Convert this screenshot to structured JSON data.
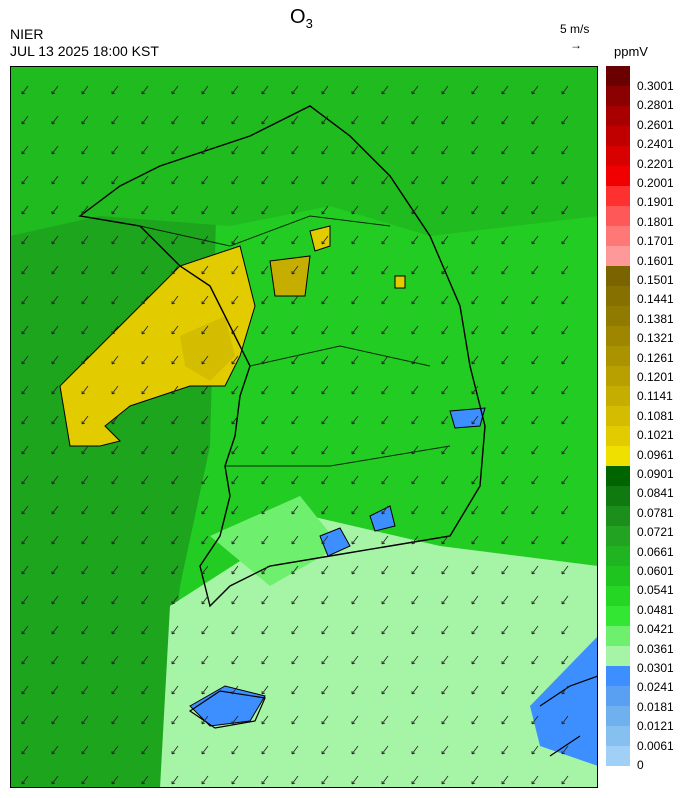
{
  "header": {
    "agency": "NIER",
    "datetime": "JUL 13 2025 18:00 KST",
    "title_main": "O",
    "title_sub": "3",
    "wind_ref": "5 m/s",
    "unit": "ppmV"
  },
  "legend": {
    "labels": [
      "0.3001",
      "0.2801",
      "0.2601",
      "0.2401",
      "0.2201",
      "0.2001",
      "0.1901",
      "0.1801",
      "0.1701",
      "0.1601",
      "0.1501",
      "0.1441",
      "0.1381",
      "0.1321",
      "0.1261",
      "0.1201",
      "0.1141",
      "0.1081",
      "0.1021",
      "0.0961",
      "0.0901",
      "0.0841",
      "0.0781",
      "0.0721",
      "0.0661",
      "0.0601",
      "0.0541",
      "0.0481",
      "0.0421",
      "0.0361",
      "0.0301",
      "0.0241",
      "0.0181",
      "0.0121",
      "0.0061",
      "0"
    ],
    "colors": [
      "#6b0000",
      "#8b0000",
      "#a80000",
      "#c00000",
      "#d90000",
      "#f00000",
      "#ff3030",
      "#ff5858",
      "#ff7878",
      "#ff9898",
      "#7a6400",
      "#857000",
      "#917a00",
      "#9e8600",
      "#ab9300",
      "#b8a000",
      "#c6ae00",
      "#d4bd00",
      "#e2cc00",
      "#f0e000",
      "#006400",
      "#107a10",
      "#1b8e1b",
      "#22a322",
      "#20b420",
      "#1fc41f",
      "#25d625",
      "#34e634",
      "#6ef06e",
      "#a6f5a6",
      "#3d8fff",
      "#5aa0f2",
      "#6fb0ef",
      "#85c0f0",
      "#a0d0f5"
    ]
  },
  "map": {
    "wind_arrows": "southwesterly-northeasterly flow arrows across grid",
    "ozone_field_colors": {
      "background": "#22cc22",
      "sea_west": "#1ea51e",
      "high_plume": "#e2cc00",
      "peak": "#ff9898",
      "low_south": "#a6f5a6",
      "lowest": "#3d8fff"
    }
  }
}
